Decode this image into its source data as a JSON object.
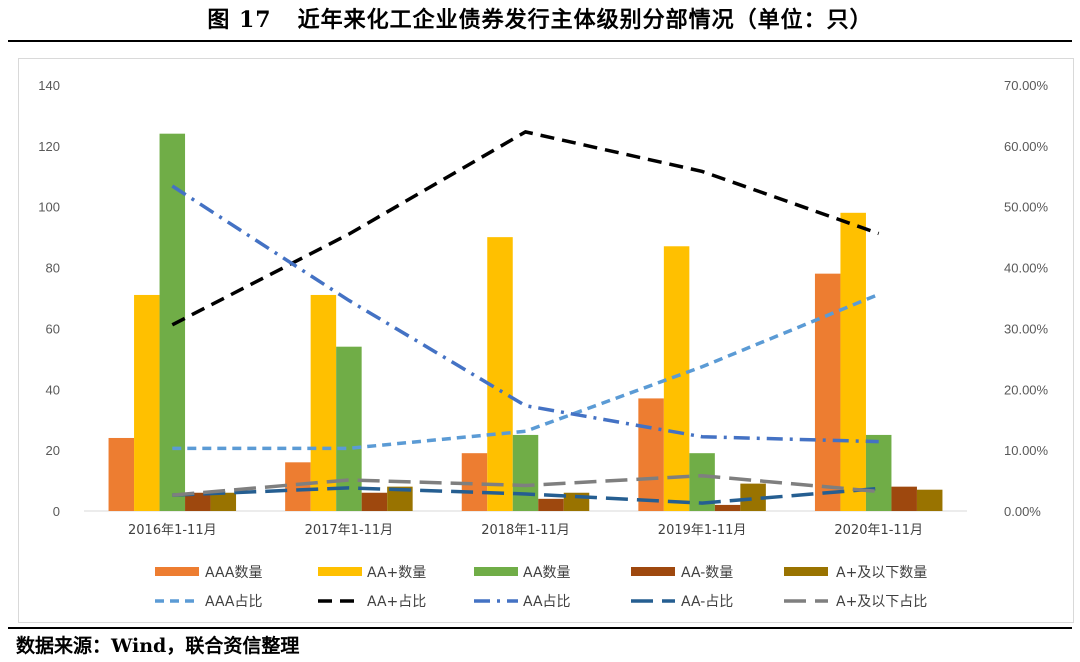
{
  "figure": {
    "number": "图 17",
    "title": "近年来化工企业债券发行主体级别分部情况（单位：只）",
    "source": "数据来源：Wind，联合资信整理"
  },
  "colors": {
    "AAA": "#ED7D31",
    "AA+": "#FFC000",
    "AA": "#70AD47",
    "AA-": "#9E480E",
    "A+below": "#997300",
    "AAA_line": "#5B9BD5",
    "AA+_line": "#000000",
    "AA_line": "#4472C4",
    "AA-_line": "#255E91",
    "A+below_line": "#7F7F7F"
  },
  "chart_data": {
    "type": "bar",
    "categories": [
      "2016年1-11月",
      "2017年1-11月",
      "2018年1-11月",
      "2019年1-11月",
      "2020年1-11月"
    ],
    "series": [
      {
        "name": "AAA数量",
        "type": "bar",
        "axis": "left",
        "values": [
          24,
          16,
          19,
          37,
          78
        ]
      },
      {
        "name": "AA+数量",
        "type": "bar",
        "axis": "left",
        "values": [
          71,
          71,
          90,
          87,
          98
        ]
      },
      {
        "name": "AA数量",
        "type": "bar",
        "axis": "left",
        "values": [
          124,
          54,
          25,
          19,
          25
        ]
      },
      {
        "name": "AA-数量",
        "type": "bar",
        "axis": "left",
        "values": [
          6,
          6,
          4,
          2,
          8
        ]
      },
      {
        "name": "A+及以下数量",
        "type": "bar",
        "axis": "left",
        "values": [
          6,
          8,
          6,
          9,
          7
        ]
      },
      {
        "name": "AAA占比",
        "type": "line",
        "axis": "right",
        "values": [
          10.3,
          10.3,
          13.1,
          23.7,
          35.6
        ]
      },
      {
        "name": "AA+占比",
        "type": "line",
        "axis": "right",
        "values": [
          30.6,
          45.5,
          62.3,
          55.8,
          45.6
        ]
      },
      {
        "name": "AA占比",
        "type": "line",
        "axis": "right",
        "values": [
          53.4,
          34.6,
          17.3,
          12.2,
          11.4
        ]
      },
      {
        "name": "AA-占比",
        "type": "line",
        "axis": "right",
        "values": [
          2.6,
          3.8,
          2.8,
          1.3,
          3.7
        ]
      },
      {
        "name": "A+及以下占比",
        "type": "line",
        "axis": "right",
        "values": [
          2.6,
          5.1,
          4.2,
          5.8,
          3.2
        ]
      }
    ],
    "y_left": {
      "min": 0,
      "max": 140,
      "ticks": [
        "0",
        "20",
        "40",
        "60",
        "80",
        "100",
        "120",
        "140"
      ]
    },
    "y_right": {
      "min": 0,
      "max": 70,
      "ticks": [
        "0.00%",
        "10.00%",
        "20.00%",
        "30.00%",
        "40.00%",
        "50.00%",
        "60.00%",
        "70.00%"
      ]
    },
    "grid": false,
    "legend_position": "bottom"
  }
}
